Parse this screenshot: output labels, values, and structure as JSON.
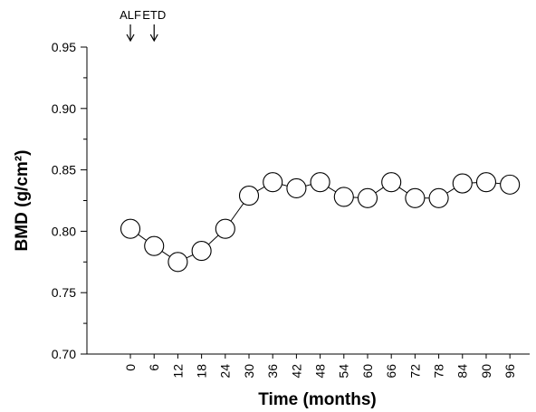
{
  "chart_data": {
    "type": "line",
    "xlabel": "Time (months)",
    "ylabel": "BMD (g/cm²)",
    "x_ticks": [
      0,
      6,
      12,
      18,
      24,
      30,
      36,
      42,
      48,
      54,
      60,
      66,
      72,
      78,
      84,
      90,
      96
    ],
    "x_tick_labels": [
      "0",
      "6",
      "12",
      "18",
      "24",
      "30",
      "36",
      "42",
      "48",
      "54",
      "60",
      "66",
      "72",
      "78",
      "84",
      "90",
      "96"
    ],
    "y_ticks": [
      0.7,
      0.75,
      0.8,
      0.85,
      0.9,
      0.95
    ],
    "y_tick_labels": [
      "0.70",
      "0.75",
      "0.80",
      "0.85",
      "0.90",
      "0.95"
    ],
    "ylim": [
      0.7,
      0.95
    ],
    "xlim": [
      -11,
      101
    ],
    "grid": false,
    "series": [
      {
        "x": [
          0,
          6,
          12,
          18,
          24,
          30,
          36,
          42,
          48,
          54,
          60,
          66,
          72,
          78,
          84,
          90,
          96
        ],
        "values": [
          0.802,
          0.788,
          0.775,
          0.784,
          0.802,
          0.829,
          0.84,
          0.835,
          0.84,
          0.828,
          0.827,
          0.84,
          0.827,
          0.827,
          0.839,
          0.84,
          0.838
        ]
      }
    ],
    "annotations": [
      {
        "label": "ALF",
        "x": 0
      },
      {
        "label": "ETD",
        "x": 6
      }
    ]
  }
}
